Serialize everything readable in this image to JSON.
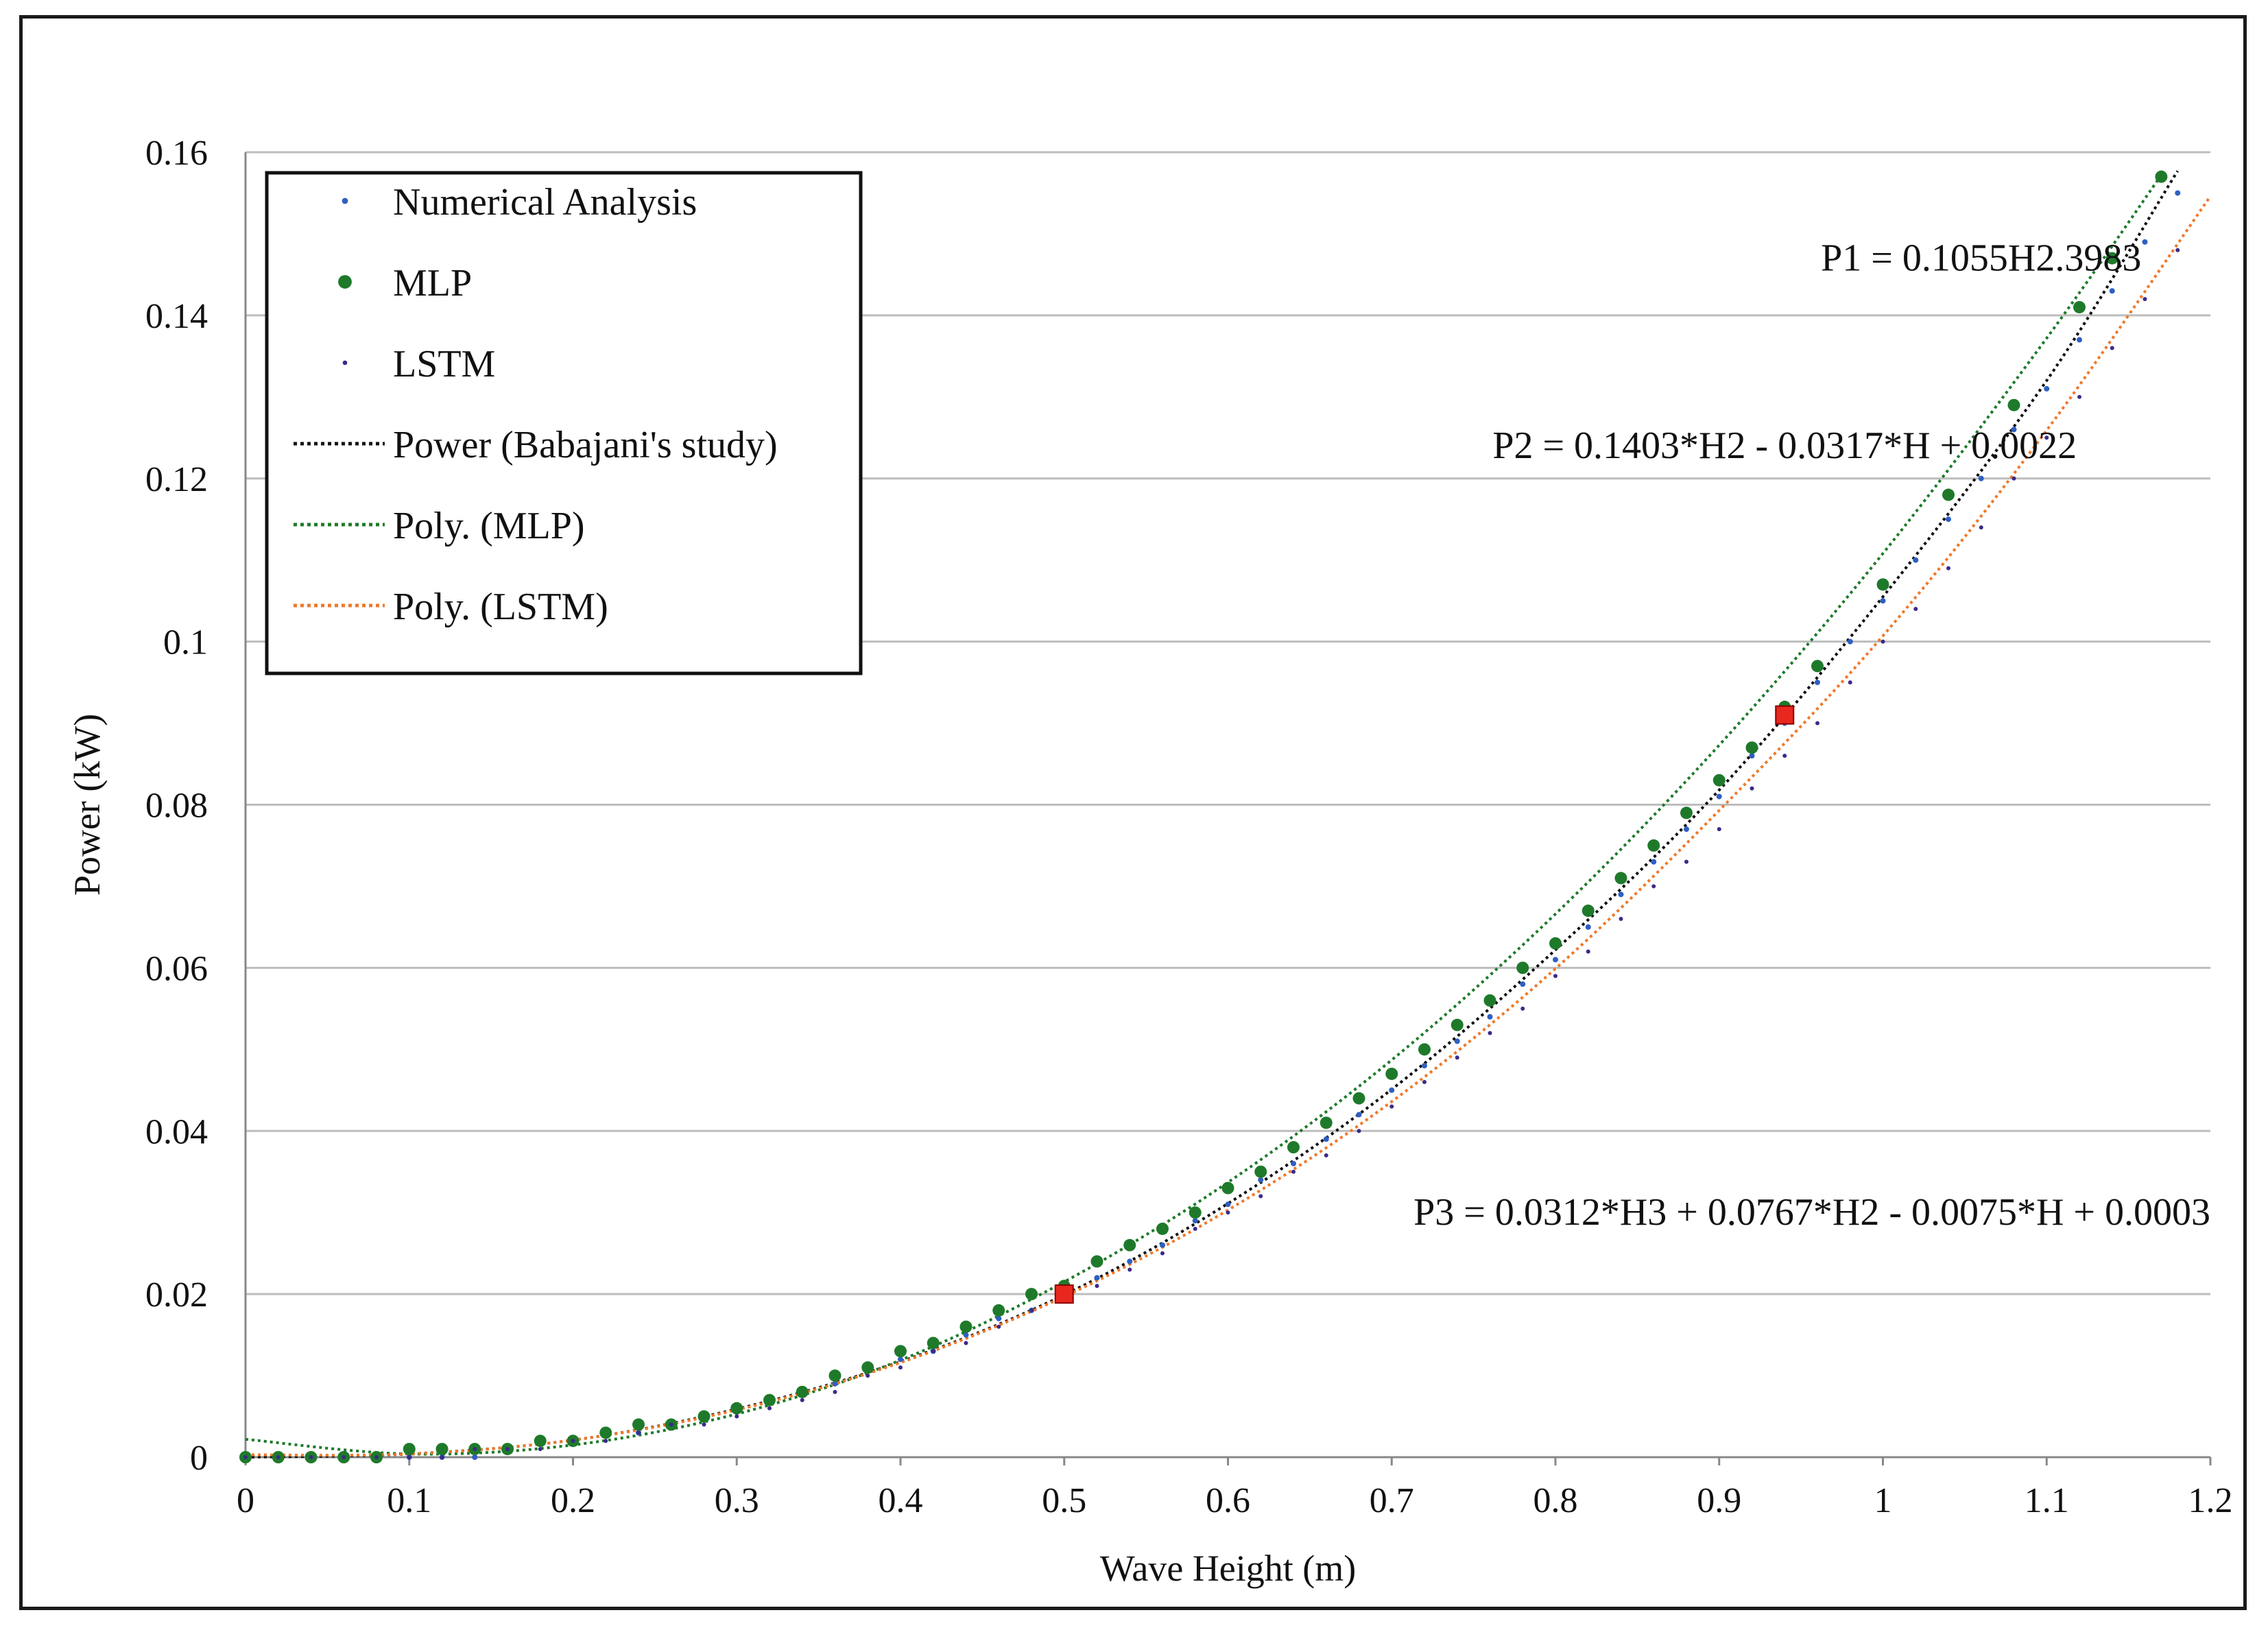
{
  "chart_data": {
    "type": "scatter",
    "title": "",
    "xlabel": "Wave Height (m)",
    "ylabel": "Power (kW)",
    "xlim": [
      0,
      1.2
    ],
    "ylim": [
      0,
      0.16
    ],
    "grid": "horizontal",
    "legend_position": "top-left",
    "x_ticks": [
      "0",
      "0.1",
      "0.2",
      "0.3",
      "0.4",
      "0.5",
      "0.6",
      "0.7",
      "0.8",
      "0.9",
      "1",
      "1.1",
      "1.2"
    ],
    "y_ticks": [
      "0",
      "0.02",
      "0.04",
      "0.06",
      "0.08",
      "0.1",
      "0.12",
      "0.14",
      "0.16"
    ],
    "x_tick_values": [
      0,
      0.1,
      0.2,
      0.3,
      0.4,
      0.5,
      0.6,
      0.7,
      0.8,
      0.9,
      1.0,
      1.1,
      1.2
    ],
    "y_tick_values": [
      0,
      0.02,
      0.04,
      0.06,
      0.08,
      0.1,
      0.12,
      0.14,
      0.16
    ],
    "series": [
      {
        "name": "Numerical Analysis",
        "kind": "points",
        "color": "#2e5fc2",
        "marker_size": 4,
        "x": [
          0.0,
          0.02,
          0.04,
          0.06,
          0.08,
          0.1,
          0.12,
          0.14,
          0.16,
          0.18,
          0.2,
          0.22,
          0.24,
          0.26,
          0.28,
          0.3,
          0.32,
          0.34,
          0.36,
          0.38,
          0.4,
          0.42,
          0.44,
          0.46,
          0.48,
          0.5,
          0.52,
          0.54,
          0.56,
          0.58,
          0.6,
          0.62,
          0.64,
          0.66,
          0.68,
          0.7,
          0.72,
          0.74,
          0.76,
          0.78,
          0.8,
          0.82,
          0.84,
          0.86,
          0.88,
          0.9,
          0.92,
          0.94,
          0.96,
          0.98,
          1.0,
          1.02,
          1.04,
          1.06,
          1.08,
          1.1,
          1.12,
          1.14,
          1.16,
          1.18
        ],
        "y": [
          0.0,
          0.0,
          0.0,
          0.0,
          0.0,
          0.0,
          0.0,
          0.0,
          0.001,
          0.002,
          0.002,
          0.003,
          0.003,
          0.004,
          0.005,
          0.006,
          0.007,
          0.008,
          0.009,
          0.011,
          0.012,
          0.013,
          0.015,
          0.017,
          0.018,
          0.02,
          0.022,
          0.024,
          0.026,
          0.029,
          0.031,
          0.034,
          0.036,
          0.039,
          0.042,
          0.045,
          0.048,
          0.051,
          0.054,
          0.058,
          0.061,
          0.065,
          0.069,
          0.073,
          0.077,
          0.081,
          0.086,
          0.09,
          0.095,
          0.1,
          0.105,
          0.11,
          0.115,
          0.12,
          0.126,
          0.131,
          0.137,
          0.143,
          0.149,
          0.155
        ]
      },
      {
        "name": "MLP",
        "kind": "points",
        "color": "#1e7a2a",
        "marker_size": 9,
        "x": [
          0.0,
          0.02,
          0.04,
          0.06,
          0.08,
          0.1,
          0.12,
          0.14,
          0.16,
          0.18,
          0.2,
          0.22,
          0.24,
          0.26,
          0.28,
          0.3,
          0.32,
          0.34,
          0.36,
          0.38,
          0.4,
          0.42,
          0.44,
          0.46,
          0.48,
          0.5,
          0.52,
          0.54,
          0.56,
          0.58,
          0.6,
          0.62,
          0.64,
          0.66,
          0.68,
          0.7,
          0.72,
          0.74,
          0.76,
          0.78,
          0.8,
          0.82,
          0.84,
          0.86,
          0.88,
          0.9,
          0.92,
          0.94,
          0.96,
          1.0,
          1.04,
          1.08,
          1.12,
          1.14,
          1.17
        ],
        "y": [
          0.0,
          0.0,
          0.0,
          0.0,
          0.0,
          0.001,
          0.001,
          0.001,
          0.001,
          0.002,
          0.002,
          0.003,
          0.004,
          0.004,
          0.005,
          0.006,
          0.007,
          0.008,
          0.01,
          0.011,
          0.013,
          0.014,
          0.016,
          0.018,
          0.02,
          0.021,
          0.024,
          0.026,
          0.028,
          0.03,
          0.033,
          0.035,
          0.038,
          0.041,
          0.044,
          0.047,
          0.05,
          0.053,
          0.056,
          0.06,
          0.063,
          0.067,
          0.071,
          0.075,
          0.079,
          0.083,
          0.087,
          0.092,
          0.097,
          0.107,
          0.118,
          0.129,
          0.141,
          0.147,
          0.157
        ]
      },
      {
        "name": "LSTM",
        "kind": "points",
        "color": "#3a2a8a",
        "marker_size": 3,
        "x": [
          0.0,
          0.02,
          0.04,
          0.06,
          0.08,
          0.1,
          0.12,
          0.14,
          0.16,
          0.18,
          0.2,
          0.22,
          0.24,
          0.26,
          0.28,
          0.3,
          0.32,
          0.34,
          0.36,
          0.38,
          0.4,
          0.42,
          0.44,
          0.46,
          0.48,
          0.5,
          0.52,
          0.54,
          0.56,
          0.58,
          0.6,
          0.62,
          0.64,
          0.66,
          0.68,
          0.7,
          0.72,
          0.74,
          0.76,
          0.78,
          0.8,
          0.82,
          0.84,
          0.86,
          0.88,
          0.9,
          0.92,
          0.94,
          0.96,
          0.98,
          1.0,
          1.02,
          1.04,
          1.06,
          1.08,
          1.1,
          1.12,
          1.14,
          1.16,
          1.18
        ],
        "y": [
          0.0,
          0.0,
          0.0,
          0.0,
          0.0,
          0.0,
          0.0,
          0.001,
          0.001,
          0.001,
          0.002,
          0.002,
          0.003,
          0.004,
          0.004,
          0.005,
          0.006,
          0.007,
          0.008,
          0.01,
          0.011,
          0.013,
          0.014,
          0.016,
          0.018,
          0.02,
          0.021,
          0.023,
          0.025,
          0.028,
          0.03,
          0.032,
          0.035,
          0.037,
          0.04,
          0.043,
          0.046,
          0.049,
          0.052,
          0.055,
          0.059,
          0.062,
          0.066,
          0.07,
          0.073,
          0.077,
          0.082,
          0.086,
          0.09,
          0.095,
          0.1,
          0.104,
          0.109,
          0.114,
          0.12,
          0.125,
          0.13,
          0.136,
          0.142,
          0.148
        ]
      },
      {
        "name": "Power (Babajani's study)",
        "kind": "dotted-line",
        "color": "#111111",
        "x": [
          0.0,
          0.1,
          0.2,
          0.3,
          0.4,
          0.5,
          0.6,
          0.7,
          0.8,
          0.9,
          1.0,
          1.1,
          1.18
        ],
        "y": [
          0.0,
          0.0004,
          0.0021,
          0.0059,
          0.0117,
          0.0199,
          0.0311,
          0.0451,
          0.0622,
          0.0818,
          0.1055,
          0.132,
          0.1577
        ]
      },
      {
        "name": "Poly. (MLP)",
        "kind": "dotted-line",
        "color": "#1e7a2a",
        "x": [
          0.0,
          0.1,
          0.2,
          0.3,
          0.4,
          0.5,
          0.6,
          0.7,
          0.8,
          0.9,
          1.0,
          1.1,
          1.17
        ],
        "y": [
          0.0022,
          0.0004,
          0.0015,
          0.0053,
          0.0119,
          0.0215,
          0.0337,
          0.0487,
          0.0666,
          0.0873,
          0.1108,
          0.1372,
          0.1572
        ]
      },
      {
        "name": "Poly. (LSTM)",
        "kind": "dotted-line",
        "color": "#f07828",
        "x": [
          0.0,
          0.1,
          0.2,
          0.3,
          0.4,
          0.5,
          0.6,
          0.7,
          0.8,
          0.9,
          1.0,
          1.1,
          1.2
        ],
        "y": [
          0.0003,
          0.0004,
          0.0021,
          0.0058,
          0.0116,
          0.0197,
          0.0303,
          0.0436,
          0.0599,
          0.0793,
          0.1007,
          0.1259,
          0.1546
        ]
      }
    ],
    "highlight_points": [
      {
        "x": 0.5,
        "y": 0.02,
        "color": "#e8281e"
      },
      {
        "x": 0.94,
        "y": 0.091,
        "color": "#e8281e"
      }
    ],
    "annotations": [
      {
        "id": "p1",
        "text": "P1 = 0.1055H2.3983",
        "x": 1.06,
        "y": 0.1455,
        "anchor": "middle"
      },
      {
        "id": "p2",
        "text": "P2 = 0.1403*H2  - 0.0317*H  + 0.0022",
        "x": 0.94,
        "y": 0.1225,
        "anchor": "middle"
      },
      {
        "id": "p3",
        "text": "P3 = 0.0312*H3  + 0.0767*H2  - 0.0075*H  + 0.0003",
        "x": 1.2,
        "y": 0.0285,
        "anchor": "end"
      }
    ],
    "legend": [
      {
        "label": "Numerical Analysis",
        "symbol": "dot",
        "color": "#2e5fc2",
        "size": 4
      },
      {
        "label": "MLP",
        "symbol": "dot",
        "color": "#1e7a2a",
        "size": 9
      },
      {
        "label": "LSTM",
        "symbol": "dot",
        "color": "#3a2a8a",
        "size": 3
      },
      {
        "label": "Power (Babajani's study)",
        "symbol": "dotted-line",
        "color": "#111111"
      },
      {
        "label": "Poly. (MLP)",
        "symbol": "dotted-line",
        "color": "#1e7a2a"
      },
      {
        "label": "Poly. (LSTM)",
        "symbol": "dotted-line",
        "color": "#f07828"
      }
    ]
  }
}
